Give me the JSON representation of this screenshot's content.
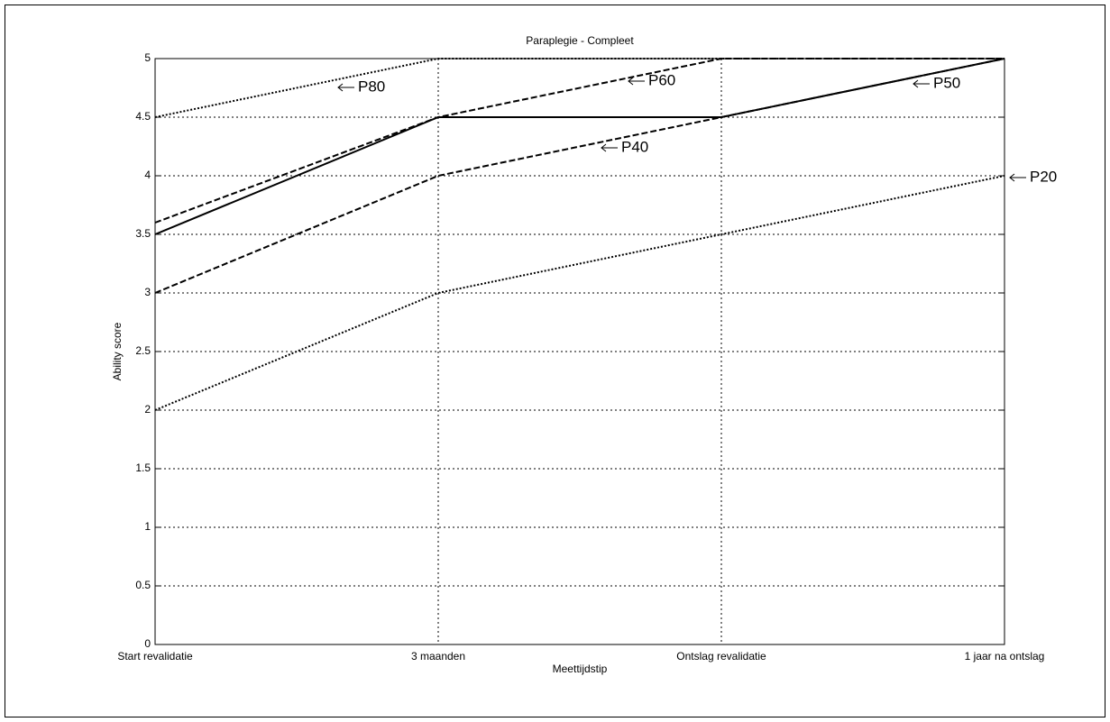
{
  "chart_data": {
    "type": "line",
    "title": "Paraplegie - Compleet",
    "x_label": "Meettijdstip",
    "y_label": "Ability score",
    "categories": [
      "Start revalidatie",
      "3 maanden",
      "Ontslag revalidatie",
      "1 jaar na ontslag"
    ],
    "series": [
      {
        "name": "P80",
        "color": "#000000",
        "linestyle": "dotted",
        "values": [
          4.5,
          5,
          5,
          5
        ]
      },
      {
        "name": "P60",
        "color": "#000000",
        "linestyle": "dashed",
        "values": [
          3.6,
          4.5,
          5,
          5
        ]
      },
      {
        "name": "P50",
        "color": "#000000",
        "linestyle": "solid",
        "values": [
          3.5,
          4.5,
          4.5,
          5
        ]
      },
      {
        "name": "P40",
        "color": "#000000",
        "linestyle": "dashed",
        "values": [
          3,
          4,
          4.5,
          5
        ]
      },
      {
        "name": "P20",
        "color": "#000000",
        "linestyle": "dotted",
        "values": [
          2,
          3,
          3.5,
          4
        ]
      }
    ],
    "ylim": [
      0,
      5
    ],
    "yticks": [
      0,
      0.5,
      1,
      1.5,
      2,
      2.5,
      3,
      3.5,
      4,
      4.5,
      5
    ],
    "grid": true
  }
}
